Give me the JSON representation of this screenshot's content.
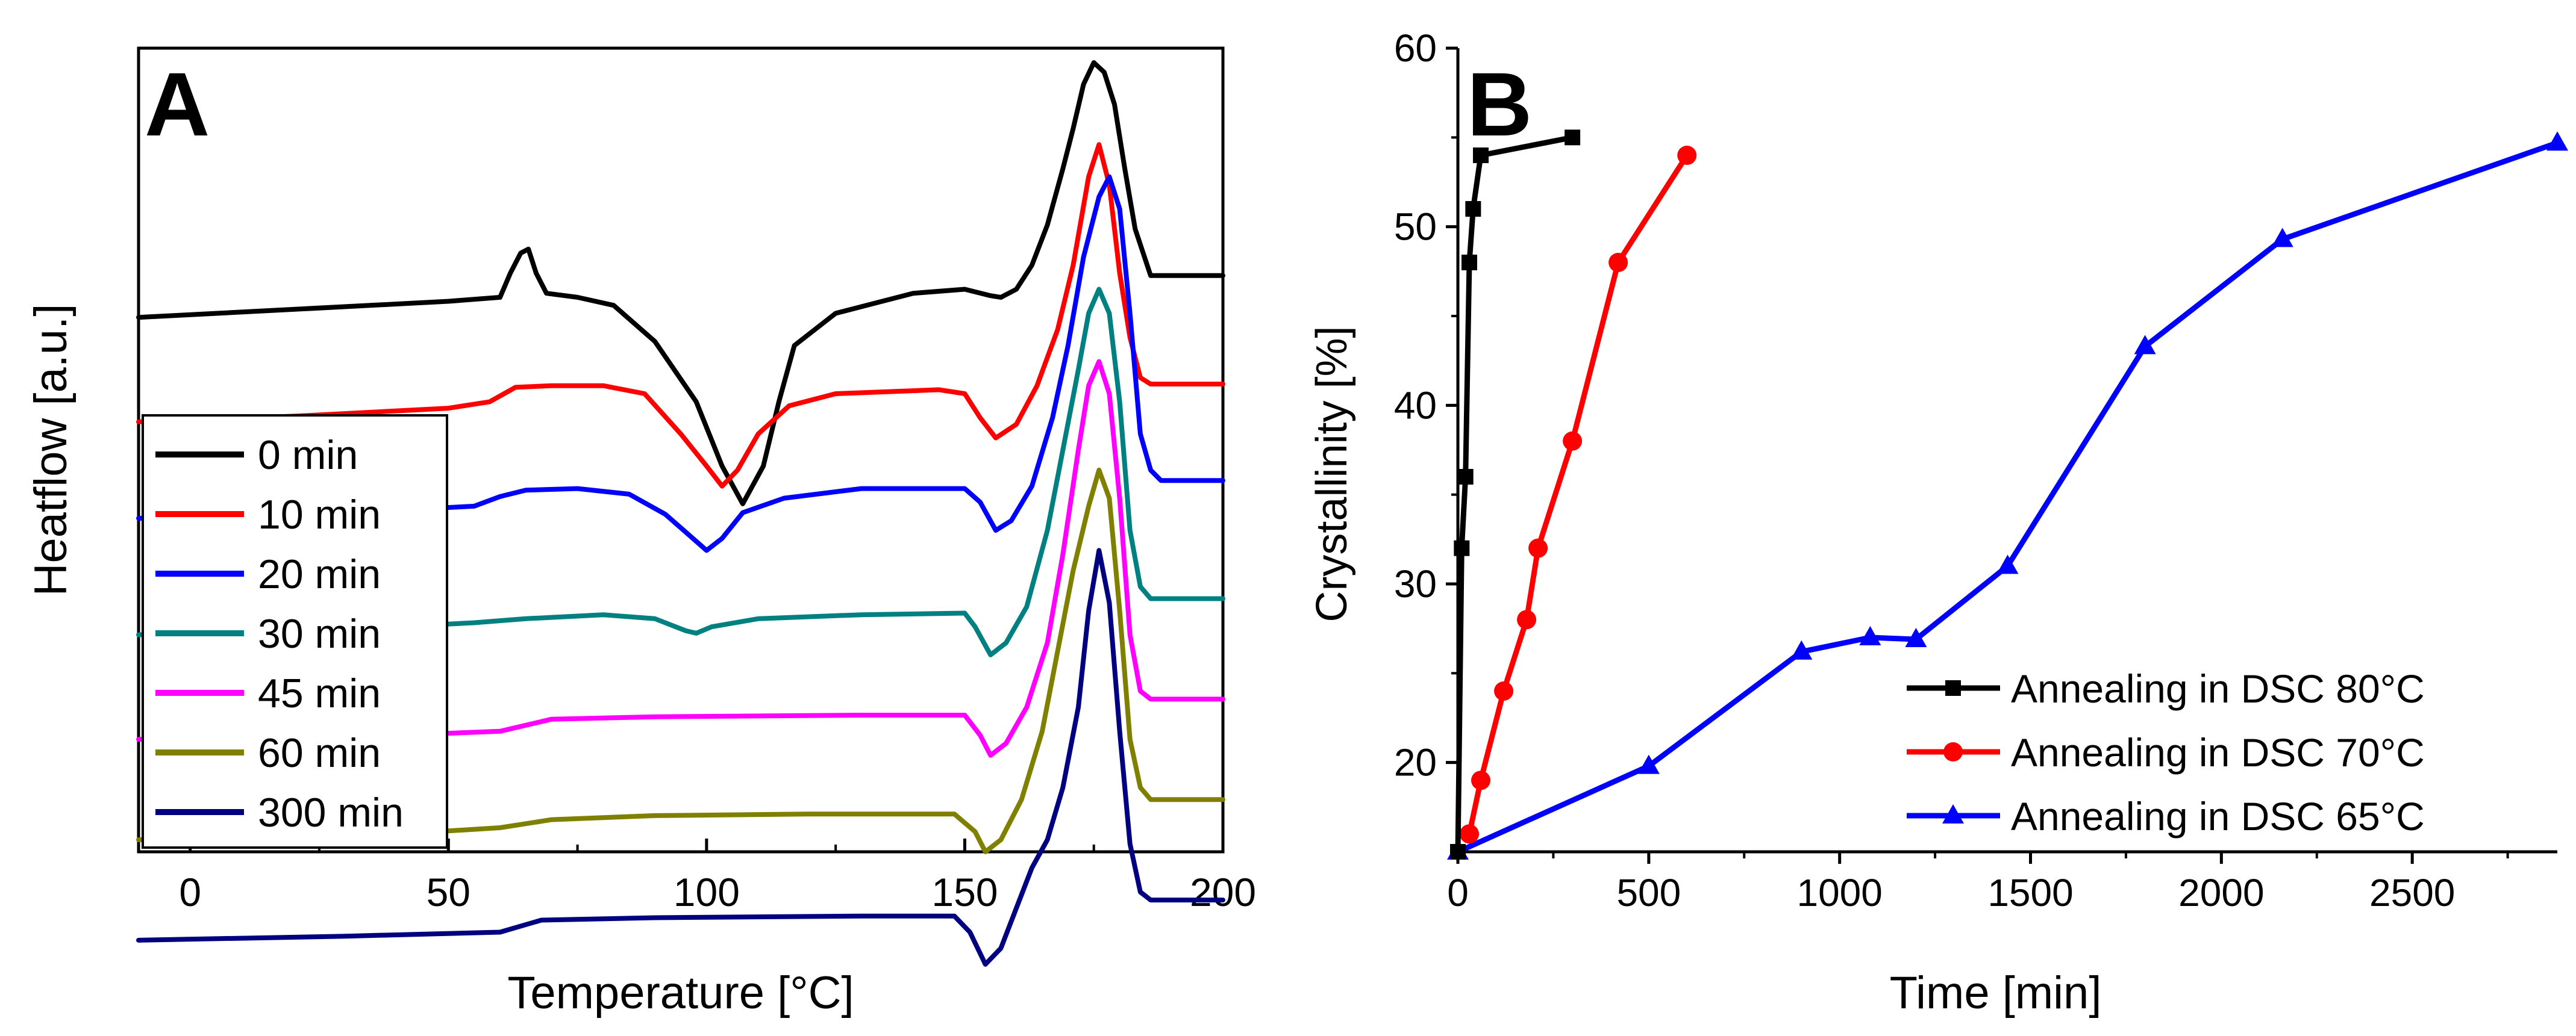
{
  "chart_data": [
    {
      "type": "line",
      "panel_label": "A",
      "xlabel": "Temperature [°C]",
      "ylabel": "Heatflow [a.u.]",
      "xlim": [
        -10,
        200
      ],
      "xticks": [
        0,
        50,
        100,
        150,
        200
      ],
      "y_units": "arbitrary (curves vertically offset)",
      "series": [
        {
          "name": "0 min",
          "color": "#000000",
          "baseline": 0.335,
          "points": [
            [
              -10,
              0.335
            ],
            [
              20,
              0.325
            ],
            [
              50,
              0.315
            ],
            [
              60,
              0.31
            ],
            [
              62,
              0.28
            ],
            [
              64,
              0.255
            ],
            [
              65.5,
              0.25
            ],
            [
              67,
              0.28
            ],
            [
              69,
              0.305
            ],
            [
              75,
              0.31
            ],
            [
              82,
              0.32
            ],
            [
              90,
              0.365
            ],
            [
              98,
              0.44
            ],
            [
              103,
              0.52
            ],
            [
              107,
              0.567
            ],
            [
              111,
              0.52
            ],
            [
              114,
              0.44
            ],
            [
              117,
              0.37
            ],
            [
              125,
              0.33
            ],
            [
              140,
              0.305
            ],
            [
              150,
              0.3
            ],
            [
              155,
              0.308
            ],
            [
              157,
              0.31
            ],
            [
              160,
              0.3
            ],
            [
              163,
              0.27
            ],
            [
              166,
              0.22
            ],
            [
              169,
              0.15
            ],
            [
              171,
              0.1
            ],
            [
              173,
              0.045
            ],
            [
              175,
              0.018
            ],
            [
              177,
              0.03
            ],
            [
              179,
              0.07
            ],
            [
              181,
              0.15
            ],
            [
              183,
              0.225
            ],
            [
              186,
              0.283
            ],
            [
              200,
              0.283
            ]
          ]
        },
        {
          "name": "10 min",
          "color": "#ff0000",
          "baseline": 0.465,
          "points": [
            [
              -10,
              0.465
            ],
            [
              20,
              0.458
            ],
            [
              50,
              0.448
            ],
            [
              58,
              0.44
            ],
            [
              63,
              0.422
            ],
            [
              70,
              0.42
            ],
            [
              80,
              0.42
            ],
            [
              88,
              0.43
            ],
            [
              95,
              0.48
            ],
            [
              100,
              0.52
            ],
            [
              103,
              0.545
            ],
            [
              106,
              0.525
            ],
            [
              110,
              0.48
            ],
            [
              116,
              0.445
            ],
            [
              125,
              0.43
            ],
            [
              145,
              0.425
            ],
            [
              150,
              0.43
            ],
            [
              153,
              0.46
            ],
            [
              156,
              0.485
            ],
            [
              160,
              0.468
            ],
            [
              164,
              0.42
            ],
            [
              168,
              0.35
            ],
            [
              171,
              0.27
            ],
            [
              174,
              0.16
            ],
            [
              176,
              0.12
            ],
            [
              178,
              0.17
            ],
            [
              180,
              0.28
            ],
            [
              182,
              0.36
            ],
            [
              184,
              0.41
            ],
            [
              186,
              0.418
            ],
            [
              200,
              0.418
            ]
          ]
        },
        {
          "name": "20 min",
          "color": "#0000ff",
          "baseline": 0.585,
          "points": [
            [
              -10,
              0.585
            ],
            [
              30,
              0.578
            ],
            [
              55,
              0.57
            ],
            [
              60,
              0.558
            ],
            [
              65,
              0.55
            ],
            [
              75,
              0.548
            ],
            [
              85,
              0.555
            ],
            [
              92,
              0.58
            ],
            [
              97,
              0.608
            ],
            [
              100,
              0.625
            ],
            [
              103,
              0.61
            ],
            [
              107,
              0.578
            ],
            [
              115,
              0.56
            ],
            [
              130,
              0.548
            ],
            [
              150,
              0.548
            ],
            [
              153,
              0.565
            ],
            [
              156,
              0.6
            ],
            [
              159,
              0.588
            ],
            [
              163,
              0.545
            ],
            [
              167,
              0.46
            ],
            [
              170,
              0.37
            ],
            [
              173,
              0.26
            ],
            [
              176,
              0.185
            ],
            [
              178,
              0.16
            ],
            [
              180,
              0.2
            ],
            [
              182,
              0.33
            ],
            [
              184,
              0.48
            ],
            [
              186,
              0.525
            ],
            [
              188,
              0.538
            ],
            [
              200,
              0.538
            ]
          ]
        },
        {
          "name": "30 min",
          "color": "#008080",
          "baseline": 0.73,
          "points": [
            [
              -10,
              0.73
            ],
            [
              30,
              0.723
            ],
            [
              55,
              0.715
            ],
            [
              65,
              0.71
            ],
            [
              80,
              0.705
            ],
            [
              90,
              0.71
            ],
            [
              96,
              0.725
            ],
            [
              98,
              0.728
            ],
            [
              101,
              0.72
            ],
            [
              110,
              0.71
            ],
            [
              130,
              0.705
            ],
            [
              150,
              0.703
            ],
            [
              152,
              0.72
            ],
            [
              155,
              0.755
            ],
            [
              158,
              0.74
            ],
            [
              162,
              0.695
            ],
            [
              166,
              0.6
            ],
            [
              169,
              0.5
            ],
            [
              172,
              0.4
            ],
            [
              174,
              0.33
            ],
            [
              176,
              0.3
            ],
            [
              178,
              0.33
            ],
            [
              180,
              0.44
            ],
            [
              182,
              0.6
            ],
            [
              184,
              0.67
            ],
            [
              186,
              0.685
            ],
            [
              200,
              0.685
            ]
          ]
        },
        {
          "name": "45 min",
          "color": "#ff00ff",
          "baseline": 0.86,
          "points": [
            [
              -10,
              0.86
            ],
            [
              40,
              0.855
            ],
            [
              60,
              0.85
            ],
            [
              70,
              0.835
            ],
            [
              90,
              0.832
            ],
            [
              130,
              0.83
            ],
            [
              150,
              0.83
            ],
            [
              153,
              0.855
            ],
            [
              155,
              0.88
            ],
            [
              158,
              0.865
            ],
            [
              162,
              0.82
            ],
            [
              166,
              0.74
            ],
            [
              169,
              0.63
            ],
            [
              172,
              0.5
            ],
            [
              174,
              0.42
            ],
            [
              176,
              0.39
            ],
            [
              178,
              0.43
            ],
            [
              180,
              0.56
            ],
            [
              182,
              0.73
            ],
            [
              184,
              0.8
            ],
            [
              186,
              0.81
            ],
            [
              200,
              0.81
            ]
          ]
        },
        {
          "name": "60 min",
          "color": "#808000",
          "baseline": 0.985,
          "points": [
            [
              -10,
              0.985
            ],
            [
              40,
              0.978
            ],
            [
              60,
              0.97
            ],
            [
              70,
              0.96
            ],
            [
              90,
              0.955
            ],
            [
              120,
              0.953
            ],
            [
              148,
              0.953
            ],
            [
              152,
              0.975
            ],
            [
              154,
              1.0
            ],
            [
              157,
              0.985
            ],
            [
              161,
              0.935
            ],
            [
              165,
              0.85
            ],
            [
              168,
              0.75
            ],
            [
              171,
              0.65
            ],
            [
              174,
              0.57
            ],
            [
              176,
              0.525
            ],
            [
              178,
              0.56
            ],
            [
              180,
              0.7
            ],
            [
              182,
              0.86
            ],
            [
              184,
              0.92
            ],
            [
              186,
              0.935
            ],
            [
              200,
              0.935
            ]
          ]
        },
        {
          "name": "300 min",
          "color": "#000080",
          "baseline": 1.11,
          "points": [
            [
              -10,
              1.11
            ],
            [
              30,
              1.105
            ],
            [
              60,
              1.1
            ],
            [
              68,
              1.085
            ],
            [
              90,
              1.082
            ],
            [
              130,
              1.08
            ],
            [
              148,
              1.08
            ],
            [
              151,
              1.1
            ],
            [
              154,
              1.14
            ],
            [
              157,
              1.12
            ],
            [
              160,
              1.07
            ],
            [
              163,
              1.02
            ],
            [
              166,
              0.985
            ],
            [
              169,
              0.92
            ],
            [
              172,
              0.82
            ],
            [
              174,
              0.7
            ],
            [
              176,
              0.625
            ],
            [
              178,
              0.69
            ],
            [
              180,
              0.85
            ],
            [
              182,
              0.99
            ],
            [
              184,
              1.05
            ],
            [
              186,
              1.06
            ],
            [
              200,
              1.06
            ]
          ]
        }
      ],
      "legend": [
        "0 min",
        "10 min",
        "20 min",
        "30 min",
        "45 min",
        "60 min",
        "300 min"
      ],
      "legend_position": "bottom-left"
    },
    {
      "type": "line",
      "panel_label": "B",
      "xlabel": "Time [min]",
      "ylabel": "Crystallinity [%]",
      "xlim": [
        0,
        2880
      ],
      "ylim": [
        15,
        60
      ],
      "xticks": [
        0,
        500,
        1000,
        1500,
        2000,
        2500
      ],
      "yticks": [
        20,
        30,
        40,
        50,
        60
      ],
      "series": [
        {
          "name": "Annealing in DSC 80°C",
          "color": "#000000",
          "marker": "square",
          "x": [
            0,
            10,
            20,
            30,
            40,
            60,
            300
          ],
          "y": [
            15,
            32,
            36,
            48,
            51,
            54,
            55
          ]
        },
        {
          "name": "Annealing in DSC 70°C",
          "color": "#ff0000",
          "marker": "circle",
          "x": [
            30,
            60,
            120,
            180,
            210,
            300,
            420,
            600
          ],
          "y": [
            16,
            19,
            24,
            28,
            32,
            38,
            48,
            54
          ]
        },
        {
          "name": "Annealing in DSC 65°C",
          "color": "#0000ff",
          "marker": "triangle",
          "x": [
            0,
            500,
            900,
            1080,
            1200,
            1440,
            1800,
            2160,
            2880
          ],
          "y": [
            15,
            19.8,
            26.2,
            27,
            26.9,
            31,
            43.3,
            49.3,
            54.7
          ]
        }
      ],
      "legend_position": "bottom-right"
    }
  ]
}
